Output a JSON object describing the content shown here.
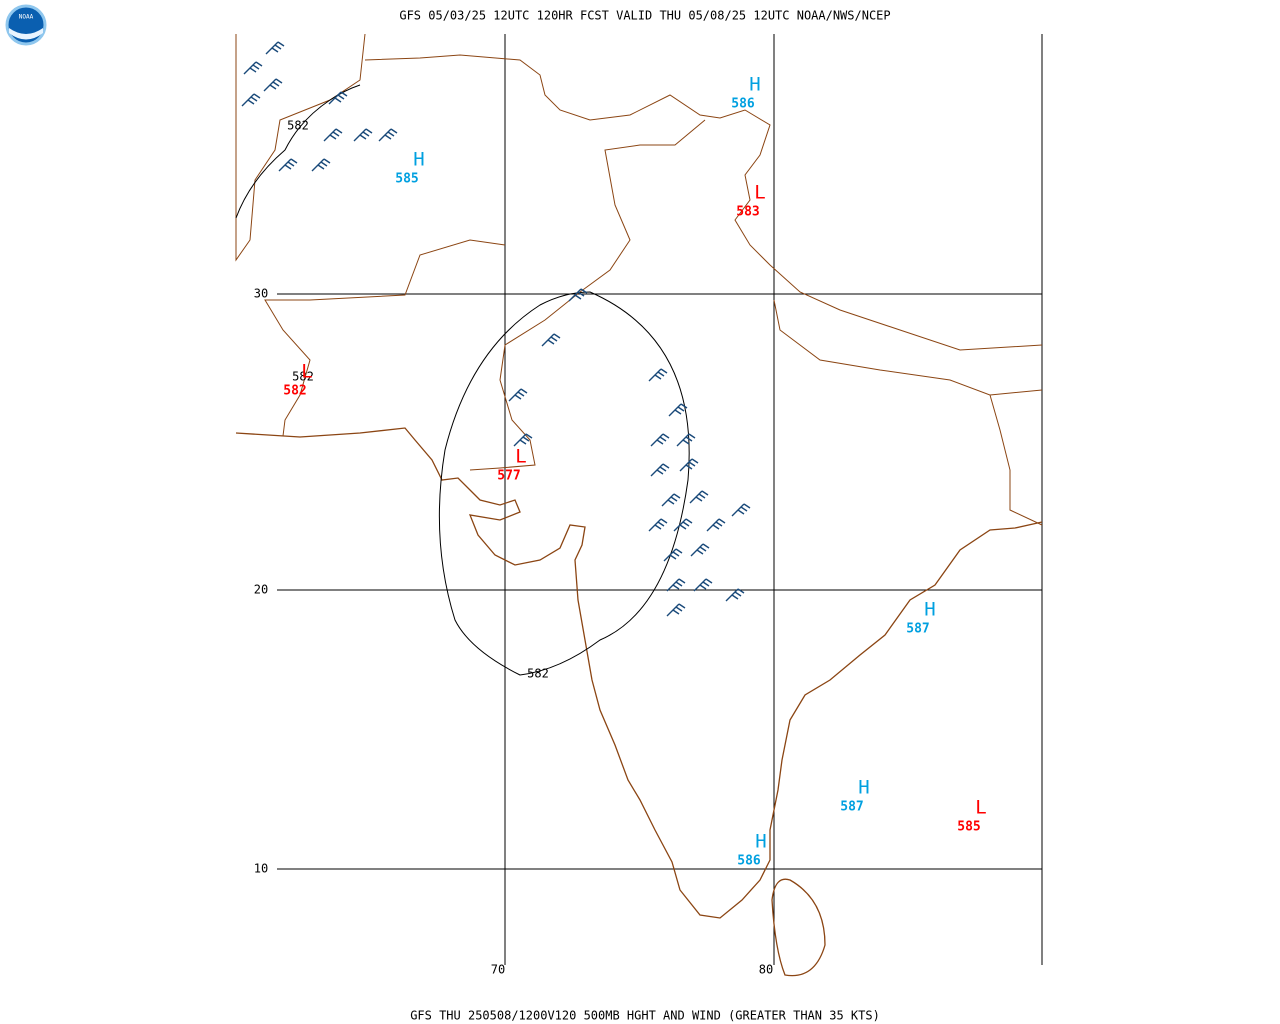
{
  "header": {
    "title": "GFS 05/03/25 12UTC 120HR FCST VALID THU 05/08/25 12UTC NOAA/NWS/NCEP",
    "logo": "NOAA"
  },
  "footer": {
    "text": "GFS THU 250508/1200V120 500MB HGHT AND WIND (GREATER THAN 35 KTS)"
  },
  "grid": {
    "latitudes": [
      "30",
      "20",
      "10"
    ],
    "longitudes": [
      "70",
      "80"
    ]
  },
  "centers": [
    {
      "letter": "H",
      "value": "586",
      "color": "#00a0e0"
    },
    {
      "letter": "H",
      "value": "585",
      "color": "#00a0e0"
    },
    {
      "letter": "L",
      "value": "583",
      "color": "#ff0000"
    },
    {
      "letter": "L",
      "value": "582",
      "color": "#ff0000"
    },
    {
      "letter": "L",
      "value": "577",
      "color": "#ff0000"
    },
    {
      "letter": "H",
      "value": "587",
      "color": "#00a0e0"
    },
    {
      "letter": "H",
      "value": "587",
      "color": "#00a0e0"
    },
    {
      "letter": "L",
      "value": "585",
      "color": "#ff0000"
    },
    {
      "letter": "H",
      "value": "586",
      "color": "#00a0e0"
    }
  ],
  "contour_labels": [
    "582",
    "582",
    "582"
  ]
}
